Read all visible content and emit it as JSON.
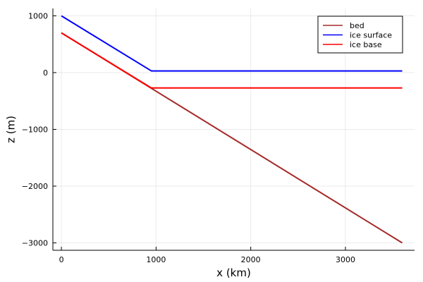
{
  "chart_data": {
    "type": "line",
    "title": "",
    "xlabel": "x (km)",
    "ylabel": "z (m)",
    "xlim": [
      -90,
      3730
    ],
    "ylim": [
      -3130,
      1130
    ],
    "xticks": [
      0,
      1000,
      2000,
      3000
    ],
    "xtick_labels": [
      "0",
      "1000",
      "2000",
      "3000"
    ],
    "yticks": [
      1000,
      0,
      -1000,
      -2000,
      -3000
    ],
    "ytick_labels": [
      "1000",
      "0",
      "−1000",
      "−2000",
      "−3000"
    ],
    "grid": true,
    "legend_position": "top-right",
    "series": [
      {
        "name": "bed",
        "color": "#a52a2a",
        "x": [
          0,
          3600
        ],
        "y": [
          700,
          -3000
        ]
      },
      {
        "name": "ice surface",
        "color": "#0000ff",
        "x": [
          0,
          950,
          3600
        ],
        "y": [
          1000,
          30,
          30
        ]
      },
      {
        "name": "ice base",
        "color": "#ff0000",
        "x": [
          0,
          950,
          3600
        ],
        "y": [
          700,
          -270,
          -270
        ]
      }
    ]
  }
}
